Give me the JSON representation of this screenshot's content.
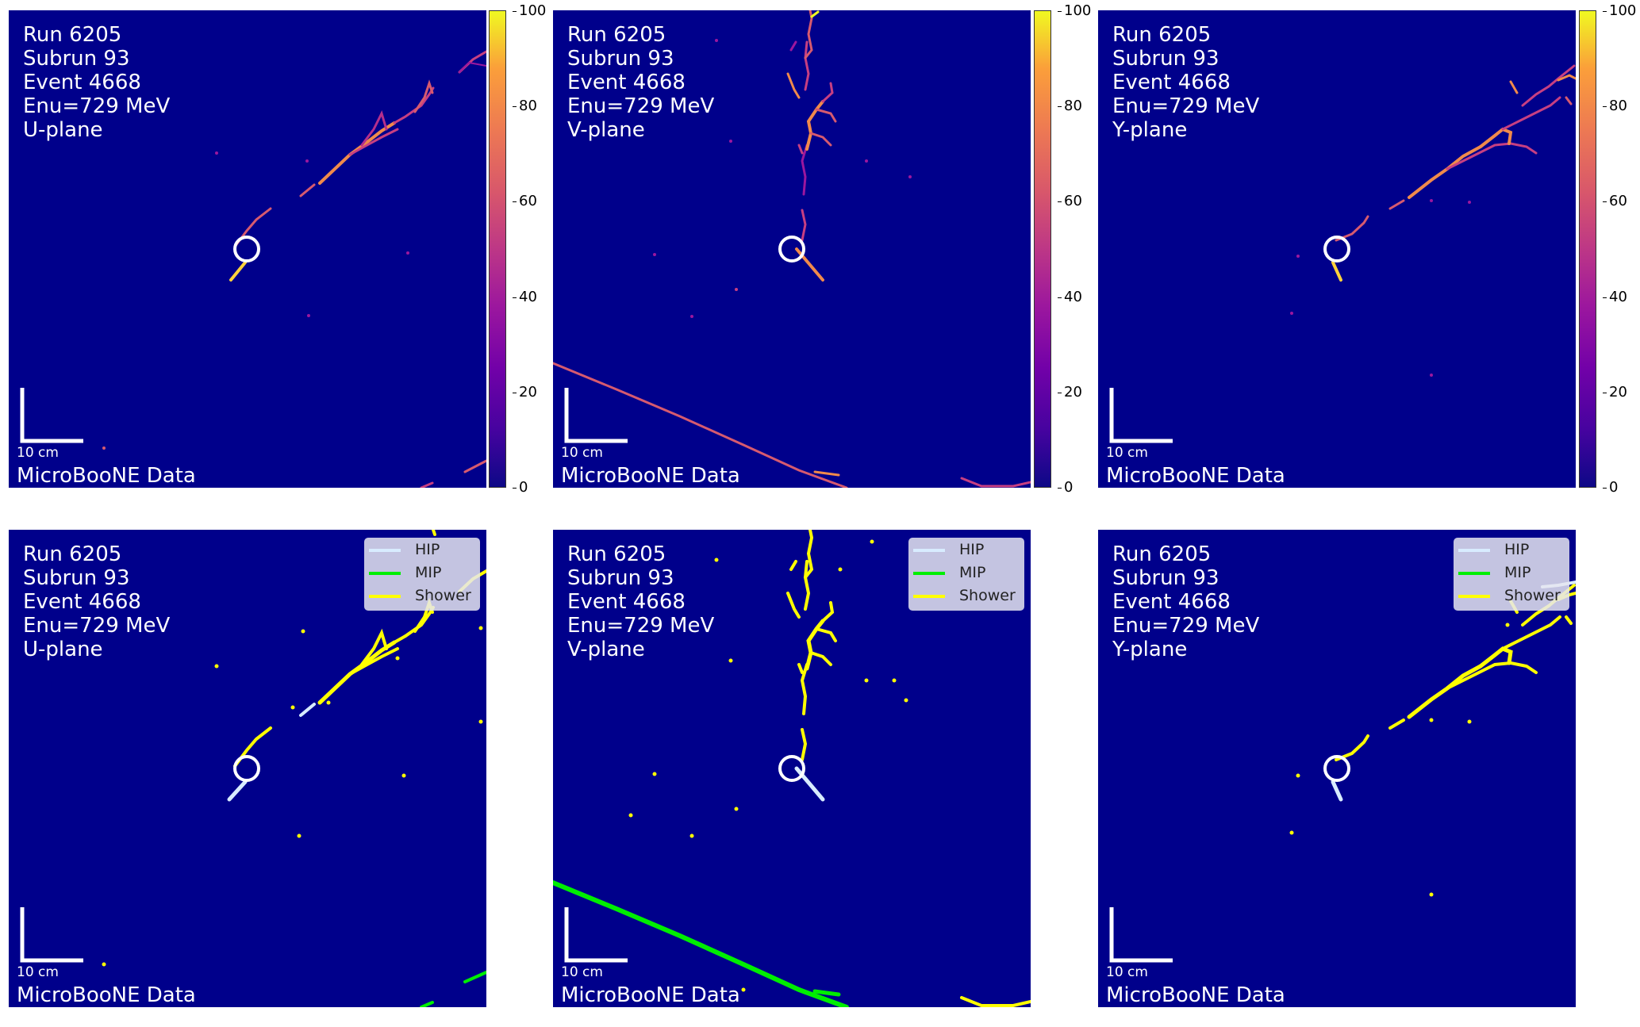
{
  "info_lines": [
    "Run 6205",
    "Subrun 93",
    "Event 4668",
    "Enu=729 MeV"
  ],
  "planes": [
    "U-plane",
    "V-plane",
    "Y-plane"
  ],
  "scale_label": "10 cm",
  "data_label": "MicroBooNE Data",
  "colorbar": {
    "ticks": [
      "100",
      "80",
      "60",
      "40",
      "20",
      "0"
    ],
    "colormap": "plasma",
    "range": [
      0,
      100
    ]
  },
  "legend": [
    {
      "label": "HIP",
      "color": "#d8ecff"
    },
    {
      "label": "MIP",
      "color": "#00ee00"
    },
    {
      "label": "Shower",
      "color": "#ffff00"
    }
  ],
  "colors": {
    "background": "#00008b",
    "hip": "#d8ecff",
    "mip": "#00ee00",
    "shower": "#ffff00",
    "text": "#ffffff"
  }
}
